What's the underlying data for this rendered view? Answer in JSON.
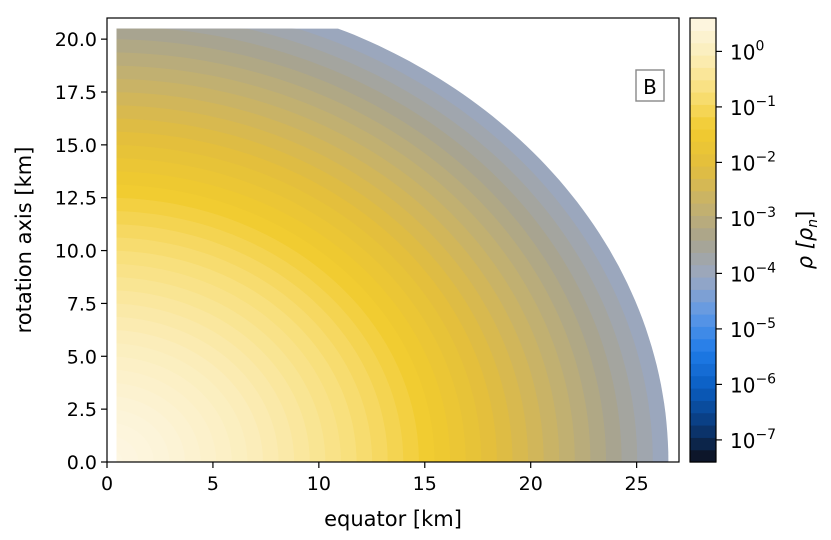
{
  "chart_data": {
    "type": "heatmap",
    "panel_label": "B",
    "xlabel": "equator [km]",
    "ylabel": "rotation axis [km]",
    "xlim": [
      0,
      27
    ],
    "ylim": [
      0,
      21
    ],
    "x_ticks": [
      0,
      5,
      10,
      15,
      20,
      25
    ],
    "x_tick_labels": [
      "0",
      "5",
      "10",
      "15",
      "20",
      "25"
    ],
    "y_ticks": [
      0,
      2.5,
      5,
      7.5,
      10,
      12.5,
      15,
      17.5,
      20
    ],
    "y_tick_labels": [
      "0.0",
      "2.5",
      "5.0",
      "7.5",
      "10.0",
      "12.5",
      "15.0",
      "17.5",
      "20.0"
    ],
    "colorbar": {
      "label": "ρ [ρ_n]",
      "scale": "log",
      "range": [
        4e-08,
        4
      ],
      "tick_values": [
        1,
        0.1,
        0.01,
        0.001,
        0.0001,
        1e-05,
        1e-06,
        1e-07
      ],
      "tick_base": "10",
      "tick_exponents": [
        "0",
        "−1",
        "−2",
        "−3",
        "−4",
        "−5",
        "−6",
        "−7"
      ],
      "levels": 36,
      "colors": [
        "#0d0f1a",
        "#0a3a7a",
        "#0a5dc0",
        "#1f7be8",
        "#5f98e6",
        "#9aa7c2",
        "#a8a48f",
        "#c7b26a",
        "#e2be3e",
        "#f1cb2e",
        "#f8df7a",
        "#fbedb8",
        "#fdf7e6"
      ]
    },
    "density_profile": {
      "description_free_values_only": true,
      "equatorial_radius_km": 26.5,
      "polar_radius_km": 19.2,
      "max_height_km": 20.5,
      "central_density_rho_n": 3.5,
      "surface_density_rho_n": 0.0001
    }
  }
}
